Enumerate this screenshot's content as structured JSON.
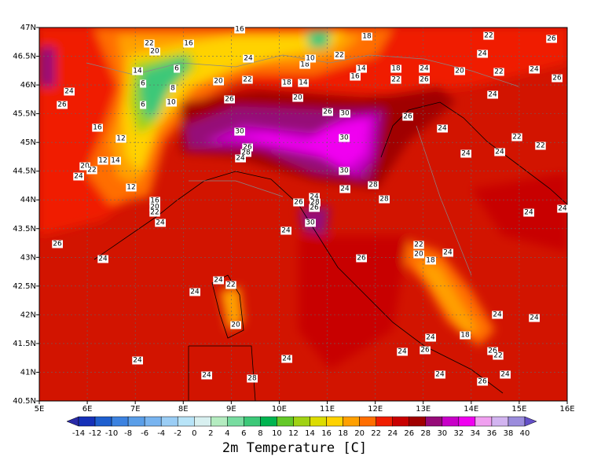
{
  "map": {
    "title": "2m Temperature [C]",
    "x_labels": [
      "5E",
      "6E",
      "7E",
      "8E",
      "9E",
      "10E",
      "11E",
      "12E",
      "13E",
      "14E",
      "15E",
      "16E"
    ],
    "y_labels": [
      "47N",
      "46.5N",
      "46N",
      "45.5N",
      "45N",
      "44.5N",
      "44N",
      "43.5N",
      "43N",
      "42.5N",
      "42N",
      "41.5N",
      "41N",
      "40.5N"
    ],
    "colorbar": {
      "ticks": [
        -14,
        -12,
        -10,
        -8,
        -6,
        -4,
        -2,
        0,
        2,
        4,
        6,
        8,
        10,
        12,
        14,
        16,
        18,
        20,
        22,
        24,
        26,
        28,
        30,
        32,
        34,
        36,
        38,
        40
      ],
      "colors": [
        "#2a2aa8",
        "#1530b8",
        "#1e5fcf",
        "#3c82e0",
        "#5a9ee8",
        "#78b4f0",
        "#9acdf5",
        "#b8e4f8",
        "#d8f0f0",
        "#b4ecc0",
        "#78dca0",
        "#3cc878",
        "#00b450",
        "#64c828",
        "#a0d214",
        "#dcdc00",
        "#ffd200",
        "#ffa000",
        "#ff6e00",
        "#f01e00",
        "#c80000",
        "#a00000",
        "#960a78",
        "#c800c8",
        "#f000f0",
        "#f0a0f0",
        "#d2b4f0",
        "#9b8cdc",
        "#6450c8"
      ]
    },
    "contour_labels": [
      "22",
      "16",
      "20",
      "16",
      "18",
      "22",
      "26",
      "24",
      "18",
      "10",
      "22",
      "14",
      "16",
      "18",
      "22",
      "24",
      "26",
      "24",
      "20",
      "22",
      "24",
      "26",
      "14",
      "6",
      "6",
      "8",
      "6",
      "10",
      "24",
      "26",
      "20",
      "22",
      "18",
      "14",
      "20",
      "26",
      "24",
      "26",
      "30",
      "26",
      "24",
      "16",
      "12",
      "30",
      "26",
      "28",
      "24",
      "30",
      "24",
      "24",
      "22",
      "22",
      "20",
      "22",
      "24",
      "12",
      "14",
      "30",
      "12",
      "16",
      "20",
      "22",
      "24",
      "24",
      "28",
      "24",
      "28",
      "26",
      "26",
      "28",
      "24",
      "24",
      "30",
      "24",
      "26",
      "24",
      "22",
      "20",
      "24",
      "26",
      "18",
      "24",
      "22",
      "24",
      "20",
      "24",
      "24",
      "24",
      "18",
      "24",
      "26",
      "26",
      "22",
      "24",
      "24",
      "24",
      "28",
      "24",
      "24",
      "26"
    ]
  }
}
